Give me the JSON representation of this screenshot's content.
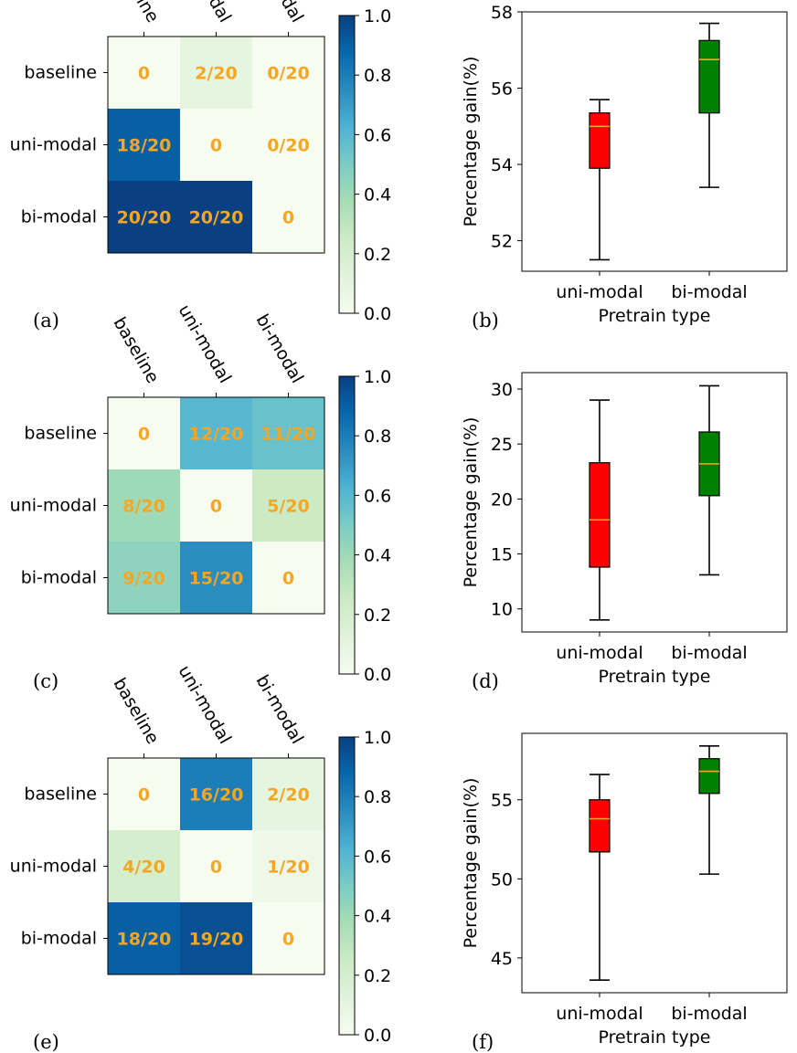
{
  "colorbar_ticks": [
    "0.0",
    "0.2",
    "0.4",
    "0.6",
    "0.8",
    "1.0"
  ],
  "colors": {
    "annotation": "#f5a623",
    "box_unimodal": "#ff0000",
    "box_bimodal": "#008000",
    "median": "#f5a623",
    "cmap": [
      "#f7fcf0",
      "#e0f3db",
      "#ccebc5",
      "#a8ddb5",
      "#7bccc4",
      "#4eb3d3",
      "#2b8cbe",
      "#0868ac",
      "#084081"
    ]
  },
  "chart_data": [
    {
      "panel_label": "(a)",
      "type": "heatmap",
      "row_labels": [
        "baseline",
        "uni-modal",
        "bi-modal"
      ],
      "col_labels": [
        "baseline",
        "uni-modal",
        "bi-modal"
      ],
      "values": [
        [
          0.0,
          0.1,
          0.0
        ],
        [
          0.9,
          0.0,
          0.0
        ],
        [
          1.0,
          1.0,
          0.0
        ]
      ],
      "annotations": [
        [
          "0",
          "2/20",
          "0/20"
        ],
        [
          "18/20",
          "0",
          "0/20"
        ],
        [
          "20/20",
          "20/20",
          "0"
        ]
      ],
      "colorbar_range": [
        0,
        1
      ]
    },
    {
      "panel_label": "(b)",
      "type": "box",
      "categories": [
        "uni-modal",
        "bi-modal"
      ],
      "xlabel": "Pretrain type",
      "ylabel": "Percentage gain(%)",
      "ylim": [
        51.2,
        58.0
      ],
      "yticks": [
        52,
        54,
        56,
        58
      ],
      "boxes": [
        {
          "min": 51.5,
          "q1": 53.9,
          "median": 55.0,
          "q3": 55.35,
          "max": 55.7
        },
        {
          "min": 53.4,
          "q1": 55.35,
          "median": 56.75,
          "q3": 57.25,
          "max": 57.7
        }
      ]
    },
    {
      "panel_label": "(c)",
      "type": "heatmap",
      "row_labels": [
        "baseline",
        "uni-modal",
        "bi-modal"
      ],
      "col_labels": [
        "baseline",
        "uni-modal",
        "bi-modal"
      ],
      "values": [
        [
          0.0,
          0.6,
          0.55
        ],
        [
          0.4,
          0.0,
          0.25
        ],
        [
          0.45,
          0.75,
          0.0
        ]
      ],
      "annotations": [
        [
          "0",
          "12/20",
          "11/20"
        ],
        [
          "8/20",
          "0",
          "5/20"
        ],
        [
          "9/20",
          "15/20",
          "0"
        ]
      ],
      "colorbar_range": [
        0,
        1
      ]
    },
    {
      "panel_label": "(d)",
      "type": "box",
      "categories": [
        "uni-modal",
        "bi-modal"
      ],
      "xlabel": "Pretrain type",
      "ylabel": "Percentage gain(%)",
      "ylim": [
        7.9,
        31.5
      ],
      "yticks": [
        10,
        15,
        20,
        25,
        30
      ],
      "boxes": [
        {
          "min": 9.0,
          "q1": 13.8,
          "median": 18.1,
          "q3": 23.3,
          "max": 29.0
        },
        {
          "min": 13.1,
          "q1": 20.3,
          "median": 23.2,
          "q3": 26.1,
          "max": 30.3
        }
      ]
    },
    {
      "panel_label": "(e)",
      "type": "heatmap",
      "row_labels": [
        "baseline",
        "uni-modal",
        "bi-modal"
      ],
      "col_labels": [
        "baseline",
        "uni-modal",
        "bi-modal"
      ],
      "values": [
        [
          0.0,
          0.8,
          0.1
        ],
        [
          0.2,
          0.0,
          0.05
        ],
        [
          0.9,
          0.95,
          0.0
        ]
      ],
      "annotations": [
        [
          "0",
          "16/20",
          "2/20"
        ],
        [
          "4/20",
          "0",
          "1/20"
        ],
        [
          "18/20",
          "19/20",
          "0"
        ]
      ],
      "colorbar_range": [
        0,
        1
      ]
    },
    {
      "panel_label": "(f)",
      "type": "box",
      "categories": [
        "uni-modal",
        "bi-modal"
      ],
      "xlabel": "Pretrain type",
      "ylabel": "Percentage gain(%)",
      "ylim": [
        42.8,
        59.2
      ],
      "yticks": [
        45,
        50,
        55
      ],
      "boxes": [
        {
          "min": 43.6,
          "q1": 51.7,
          "median": 53.8,
          "q3": 55.0,
          "max": 56.6
        },
        {
          "min": 50.3,
          "q1": 55.4,
          "median": 56.8,
          "q3": 57.6,
          "max": 58.4
        }
      ]
    }
  ]
}
